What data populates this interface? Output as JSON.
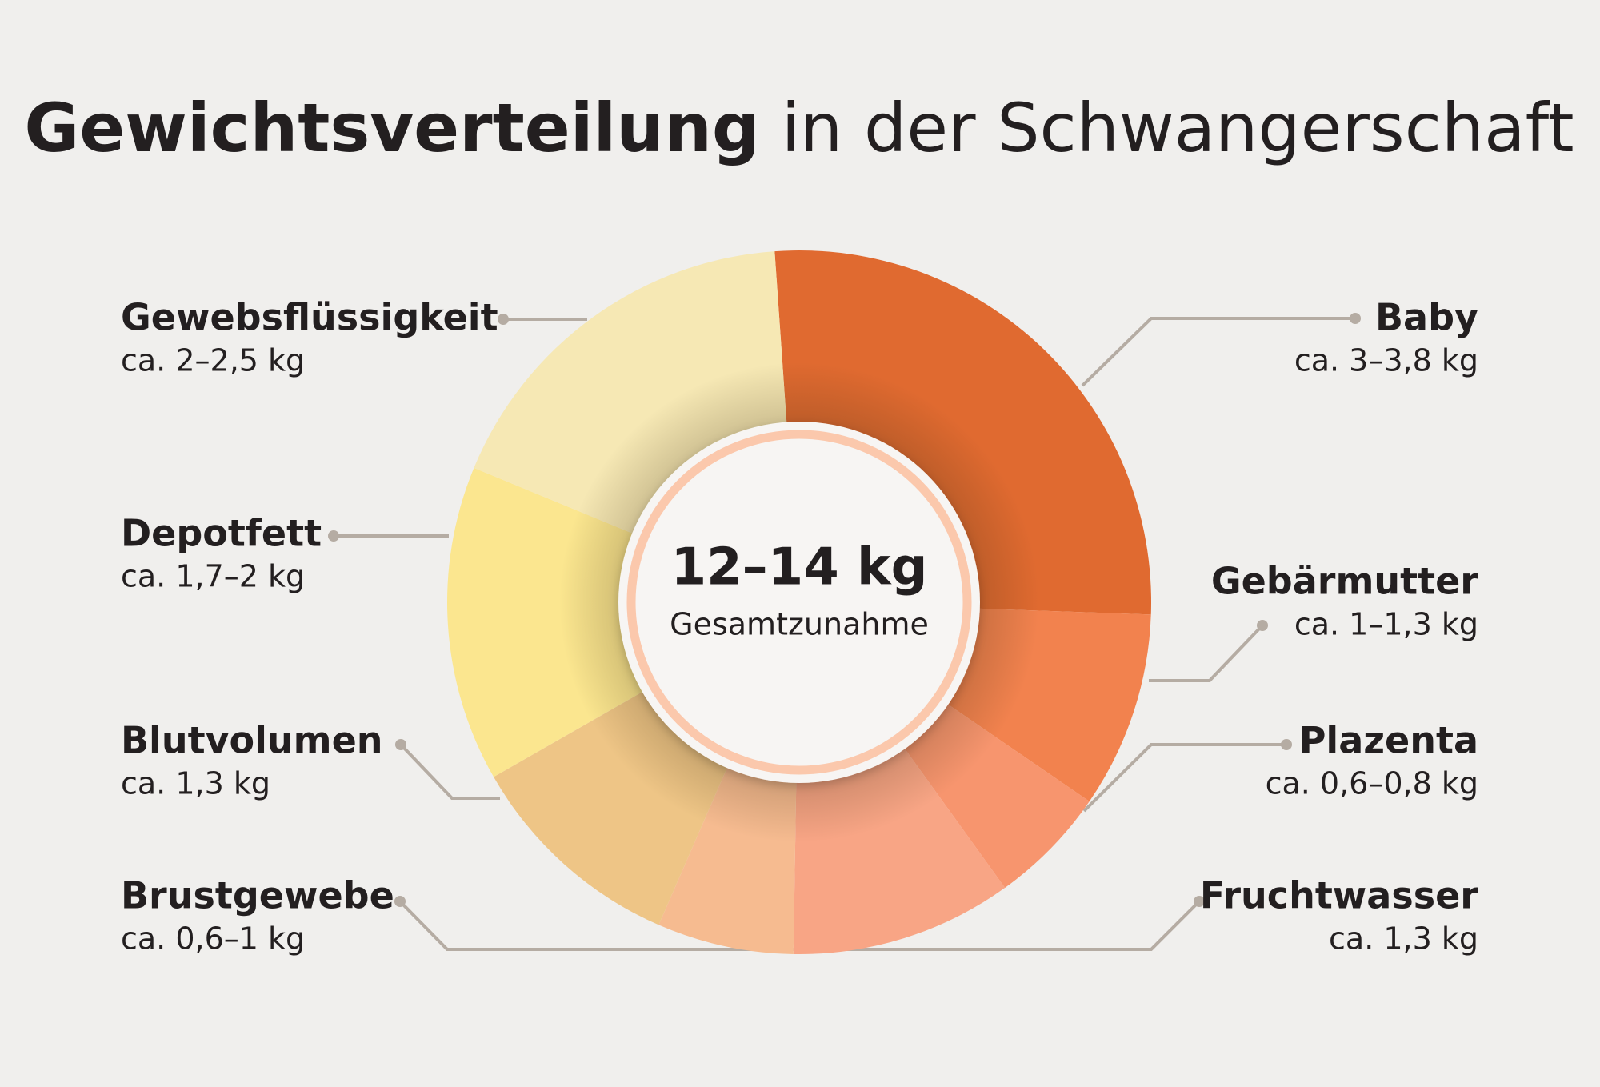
{
  "chart_data": {
    "type": "pie",
    "title": {
      "bold": "Gewichtsverteilung",
      "regular": "in der Schwangerschaft"
    },
    "center_value": "12–14 kg",
    "center_label": "Gesamtzunahme",
    "categories": [
      "Baby",
      "Gebärmutter",
      "Plazenta",
      "Fruchtwasser",
      "Brustgewebe",
      "Blutvolumen",
      "Depotfett",
      "Gewebsflüssigkeit"
    ],
    "values": [
      [
        3,
        3.8
      ],
      [
        1,
        1.3
      ],
      [
        0.6,
        0.8
      ],
      1.3,
      [
        0.6,
        1
      ],
      1.3,
      [
        1.7,
        2
      ],
      [
        2,
        2.5
      ]
    ],
    "value_labels": [
      "ca. 3–3,8 kg",
      "ca. 1–1,3 kg",
      "ca. 0,6–0,8 kg",
      "ca. 1,3 kg",
      "ca. 0,6–1 kg",
      "ca. 1,3 kg",
      "ca. 1,7–2 kg",
      "ca. 2–2,5 kg"
    ],
    "colors": [
      "#e06a30",
      "#f2824e",
      "#f7956e",
      "#f8a585",
      "#f6bb90",
      "#eec586",
      "#fbe68f",
      "#f6e8b4"
    ]
  }
}
